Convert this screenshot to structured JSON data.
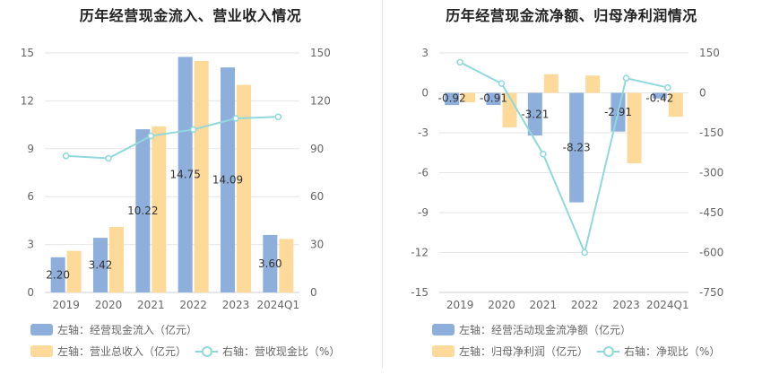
{
  "titles": {
    "left": "历年经营现金流入、营业收入情况",
    "right": "历年经营现金流净额、归母净利润情况"
  },
  "colors": {
    "blue": "#8eaedb",
    "orange": "#fdd99a",
    "teal": "#8fd8dc",
    "grid": "#e6e6e6",
    "axis_text": "#666666"
  },
  "chart_data": [
    {
      "type": "bar",
      "title": "历年经营现金流入、营业收入情况",
      "categories": [
        "2019",
        "2020",
        "2021",
        "2022",
        "2023",
        "2024Q1"
      ],
      "left_axis": {
        "ticks": [
          0,
          3,
          6,
          9,
          12,
          15
        ],
        "ylim": [
          0,
          15
        ]
      },
      "right_axis": {
        "ticks": [
          0,
          30,
          60,
          90,
          120,
          150
        ],
        "ylim": [
          0,
          150
        ]
      },
      "series": [
        {
          "name": "左轴：经营现金流入（亿元）",
          "axis": "left",
          "type": "bar",
          "values": [
            2.2,
            3.42,
            10.22,
            14.75,
            14.09,
            3.6
          ],
          "labels": [
            "2.20",
            "3.42",
            "10.22",
            "14.75",
            "14.09",
            "3.60"
          ]
        },
        {
          "name": "左轴：营业总收入（亿元）",
          "axis": "left",
          "type": "bar",
          "values": [
            2.6,
            4.1,
            10.4,
            14.5,
            13.0,
            3.35
          ]
        },
        {
          "name": "右轴：营收现金比（%）",
          "axis": "right",
          "type": "line",
          "values": [
            85.5,
            84,
            98,
            102,
            109,
            110
          ]
        }
      ],
      "legend_position": "bottom",
      "grid": true
    },
    {
      "type": "bar",
      "title": "历年经营现金流净额、归母净利润情况",
      "categories": [
        "2019",
        "2020",
        "2021",
        "2022",
        "2023",
        "2024Q1"
      ],
      "left_axis": {
        "ticks": [
          3,
          0,
          -3,
          -6,
          -9,
          -12,
          -15
        ],
        "ylim": [
          -15,
          3
        ]
      },
      "right_axis": {
        "ticks": [
          150,
          0,
          -150,
          -300,
          -450,
          -600,
          -750
        ],
        "ylim": [
          -750,
          150
        ]
      },
      "series": [
        {
          "name": "左轴：经营活动现金流净额（亿元）",
          "axis": "left",
          "type": "bar",
          "values": [
            -0.92,
            -0.91,
            -3.21,
            -8.23,
            -2.91,
            -0.42
          ],
          "labels": [
            "-0.92",
            "-0.91",
            "-3.21",
            "-8.23",
            "-2.91",
            "-0.42"
          ]
        },
        {
          "name": "左轴：归母净利润（亿元）",
          "axis": "left",
          "type": "bar",
          "values": [
            -0.7,
            -2.6,
            1.4,
            1.3,
            -5.3,
            -1.8
          ]
        },
        {
          "name": "右轴：净现比（%）",
          "axis": "right",
          "type": "line",
          "values": [
            115,
            35,
            -230,
            -600,
            55,
            20
          ]
        }
      ],
      "legend_position": "bottom",
      "grid": true
    }
  ]
}
